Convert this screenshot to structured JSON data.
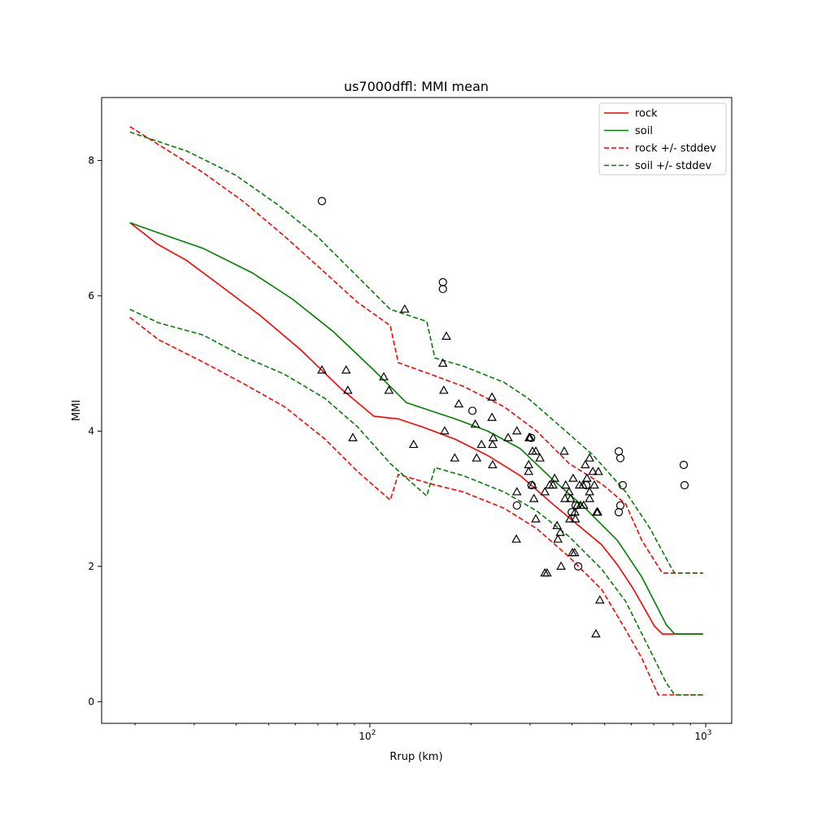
{
  "chart_data": {
    "type": "line",
    "title": "us7000dffl: MMI mean",
    "xlabel": "Rrup (km)",
    "ylabel": "MMI",
    "xscale": "log",
    "xlim": [
      15.9,
      1195
    ],
    "ylim": [
      -0.32,
      8.93
    ],
    "xticks": [
      {
        "value": 100,
        "base": "10",
        "exp": "2"
      },
      {
        "value": 1000,
        "base": "10",
        "exp": "3"
      }
    ],
    "yticks": [
      {
        "value": 0,
        "label": "0"
      },
      {
        "value": 2,
        "label": "2"
      },
      {
        "value": 4,
        "label": "4"
      },
      {
        "value": 6,
        "label": "6"
      },
      {
        "value": 8,
        "label": "8"
      }
    ],
    "legend_position": "top-right",
    "series": [
      {
        "name": "rock",
        "color": "#ff0000",
        "dash": false,
        "x": [
          19.3,
          20.5,
          23.2,
          28.5,
          35.7,
          47.1,
          62.3,
          82.3,
          102.8,
          121.5,
          143.6,
          179.5,
          224.4,
          280.6,
          350.8,
          414.5,
          489.8,
          546.8,
          610.3,
          703,
          743,
          982
        ],
        "y": [
          7.08,
          6.98,
          6.77,
          6.52,
          6.16,
          5.71,
          5.2,
          4.62,
          4.22,
          4.18,
          4.06,
          3.88,
          3.64,
          3.34,
          2.92,
          2.62,
          2.32,
          2.02,
          1.66,
          1.12,
          1.0,
          1.0
        ]
      },
      {
        "name": "soil",
        "color": "#008000",
        "dash": false,
        "x": [
          19.3,
          23.2,
          31.9,
          44.6,
          58.9,
          77.8,
          102.8,
          128.5,
          147.7,
          179.5,
          224.4,
          280.6,
          350.8,
          438,
          546.8,
          646,
          763,
          808,
          982
        ],
        "y": [
          7.08,
          6.94,
          6.7,
          6.34,
          5.95,
          5.47,
          4.9,
          4.42,
          4.32,
          4.18,
          4.0,
          3.74,
          3.28,
          2.86,
          2.38,
          1.84,
          1.14,
          1.0,
          1.0
        ]
      },
      {
        "name": "rock +/- stddev",
        "color": "#ff0000",
        "dash": true,
        "x": [
          19.3,
          24.1,
          31.9,
          42.1,
          55.7,
          73.6,
          92,
          115,
          121.5,
          151.8,
          189.9,
          251,
          313.8,
          392,
          489.8,
          578,
          646,
          743,
          982
        ],
        "y": [
          8.5,
          8.2,
          7.82,
          7.39,
          6.88,
          6.34,
          5.9,
          5.56,
          5.01,
          4.84,
          4.66,
          4.36,
          4.0,
          3.52,
          3.22,
          2.92,
          2.38,
          1.9,
          1.9
        ]
      },
      {
        "name": "rock -stddev",
        "legend": false,
        "color": "#ff0000",
        "dash": true,
        "x": [
          19.3,
          23.5,
          31.9,
          42.1,
          55.7,
          73.6,
          92,
          115,
          121.5,
          151.8,
          189.9,
          251,
          313.8,
          392,
          489.8,
          578,
          646,
          722,
          982
        ],
        "y": [
          5.68,
          5.35,
          5.02,
          4.7,
          4.36,
          3.88,
          3.4,
          2.98,
          3.36,
          3.22,
          3.1,
          2.86,
          2.56,
          2.14,
          1.66,
          1.06,
          0.64,
          0.1,
          0.1
        ]
      },
      {
        "name": "soil +/- stddev",
        "color": "#008000",
        "dash": true,
        "x": [
          19.3,
          28.5,
          39.9,
          52.7,
          69.6,
          92,
          115,
          147.7,
          156.3,
          189.9,
          251,
          296.7,
          371,
          463,
          578,
          683,
          786,
          808,
          982
        ],
        "y": [
          8.42,
          8.14,
          7.78,
          7.36,
          6.88,
          6.28,
          5.8,
          5.62,
          5.08,
          4.96,
          4.72,
          4.48,
          4.06,
          3.64,
          3.1,
          2.56,
          2.0,
          1.9,
          1.9
        ]
      },
      {
        "name": "soil -stddev",
        "legend": false,
        "color": "#008000",
        "dash": true,
        "x": [
          19.3,
          23.5,
          31.9,
          42.1,
          55.7,
          73.6,
          92,
          115,
          147.7,
          156.3,
          189.9,
          251,
          313.8,
          392,
          489.8,
          578,
          683,
          763,
          808,
          982
        ],
        "y": [
          5.8,
          5.6,
          5.42,
          5.1,
          4.84,
          4.48,
          4.06,
          3.52,
          3.04,
          3.46,
          3.34,
          3.1,
          2.82,
          2.44,
          1.96,
          1.48,
          0.76,
          0.28,
          0.1,
          0.1
        ]
      }
    ],
    "observations_circle": {
      "x": [
        72,
        165,
        165,
        202,
        551,
        557,
        566,
        557,
        551,
        860,
        865,
        417,
        274,
        302,
        303,
        399,
        410,
        441
      ],
      "y": [
        7.4,
        6.2,
        6.1,
        4.3,
        3.7,
        3.6,
        3.2,
        2.9,
        2.8,
        3.5,
        3.2,
        2.0,
        2.9,
        3.9,
        3.2,
        2.8,
        2.9,
        3.2
      ]
    },
    "observations_triangle": {
      "x": [
        72,
        85,
        86,
        89,
        110,
        114,
        127,
        135,
        165,
        169,
        166,
        167,
        179,
        184,
        206,
        208,
        215,
        231,
        231,
        232,
        233,
        232,
        258,
        274,
        274,
        273,
        297,
        297,
        298,
        300,
        305,
        305,
        308,
        312,
        312,
        321,
        332,
        332,
        337,
        343,
        351,
        355,
        361,
        363,
        369,
        371,
        379,
        381,
        383,
        392,
        394,
        396,
        401,
        407,
        403,
        408,
        409,
        414,
        424,
        431,
        433,
        438,
        443,
        451,
        451,
        461,
        466,
        471,
        477,
        474,
        479,
        484,
        451,
        421
      ],
      "y": [
        4.9,
        4.9,
        4.6,
        3.9,
        4.8,
        4.6,
        5.8,
        3.8,
        5.0,
        5.4,
        4.6,
        4.0,
        3.6,
        4.4,
        4.1,
        3.6,
        3.8,
        4.5,
        4.2,
        3.5,
        3.9,
        3.8,
        3.9,
        4.0,
        3.1,
        2.4,
        3.5,
        3.4,
        3.9,
        3.9,
        3.7,
        3.2,
        3.0,
        2.7,
        3.7,
        3.6,
        3.1,
        1.9,
        1.9,
        3.2,
        3.2,
        3.3,
        2.6,
        2.4,
        2.5,
        2.0,
        3.7,
        3.0,
        3.2,
        3.1,
        2.7,
        3.0,
        2.2,
        2.2,
        3.3,
        2.8,
        2.7,
        2.9,
        2.9,
        3.2,
        2.9,
        3.5,
        3.3,
        3.6,
        3.1,
        3.4,
        3.2,
        1.0,
        2.8,
        2.8,
        3.4,
        1.5,
        3.0,
        3.2
      ]
    }
  }
}
